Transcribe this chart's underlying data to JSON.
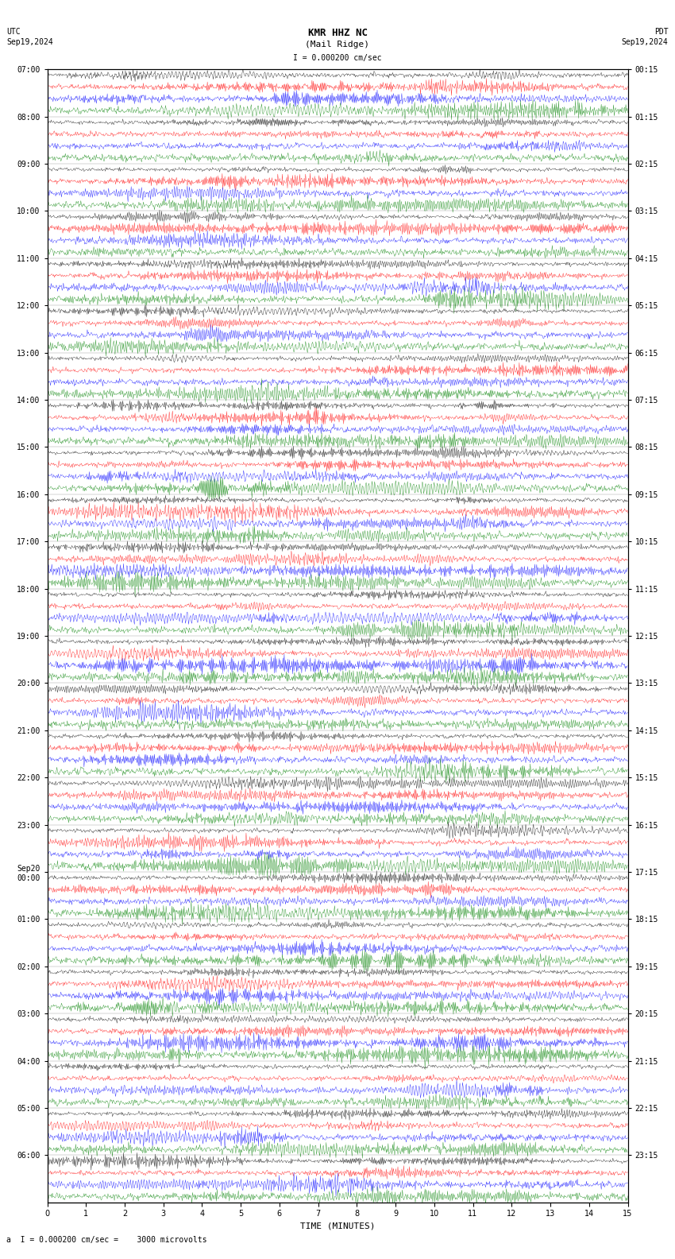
{
  "title_line1": "KMR HHZ NC",
  "title_line2": "(Mail Ridge)",
  "title_scale": "I = 0.000200 cm/sec",
  "utc_label": "UTC",
  "utc_date": "Sep19,2024",
  "pdt_label": "PDT",
  "pdt_date": "Sep19,2024",
  "bottom_label": "a  I = 0.000200 cm/sec =    3000 microvolts",
  "xlabel": "TIME (MINUTES)",
  "left_times": [
    "07:00",
    "08:00",
    "09:00",
    "10:00",
    "11:00",
    "12:00",
    "13:00",
    "14:00",
    "15:00",
    "16:00",
    "17:00",
    "18:00",
    "19:00",
    "20:00",
    "21:00",
    "22:00",
    "23:00",
    "Sep20\n00:00",
    "01:00",
    "02:00",
    "03:00",
    "04:00",
    "05:00",
    "06:00"
  ],
  "right_times": [
    "00:15",
    "01:15",
    "02:15",
    "03:15",
    "04:15",
    "05:15",
    "06:15",
    "07:15",
    "08:15",
    "09:15",
    "10:15",
    "11:15",
    "12:15",
    "13:15",
    "14:15",
    "15:15",
    "16:15",
    "17:15",
    "18:15",
    "19:15",
    "20:15",
    "21:15",
    "22:15",
    "23:15"
  ],
  "n_rows": 24,
  "traces_per_row": 4,
  "colors": [
    "black",
    "red",
    "blue",
    "green"
  ],
  "figsize": [
    8.5,
    15.84
  ],
  "dpi": 100,
  "background_color": "white",
  "noise_amplitude": 0.15,
  "signal_amplitude": 0.35,
  "n_points": 900,
  "xlim": [
    0,
    15
  ],
  "xticks": [
    0,
    1,
    2,
    3,
    4,
    5,
    6,
    7,
    8,
    9,
    10,
    11,
    12,
    13,
    14,
    15
  ],
  "title_fontsize": 9,
  "label_fontsize": 7,
  "tick_fontsize": 7
}
